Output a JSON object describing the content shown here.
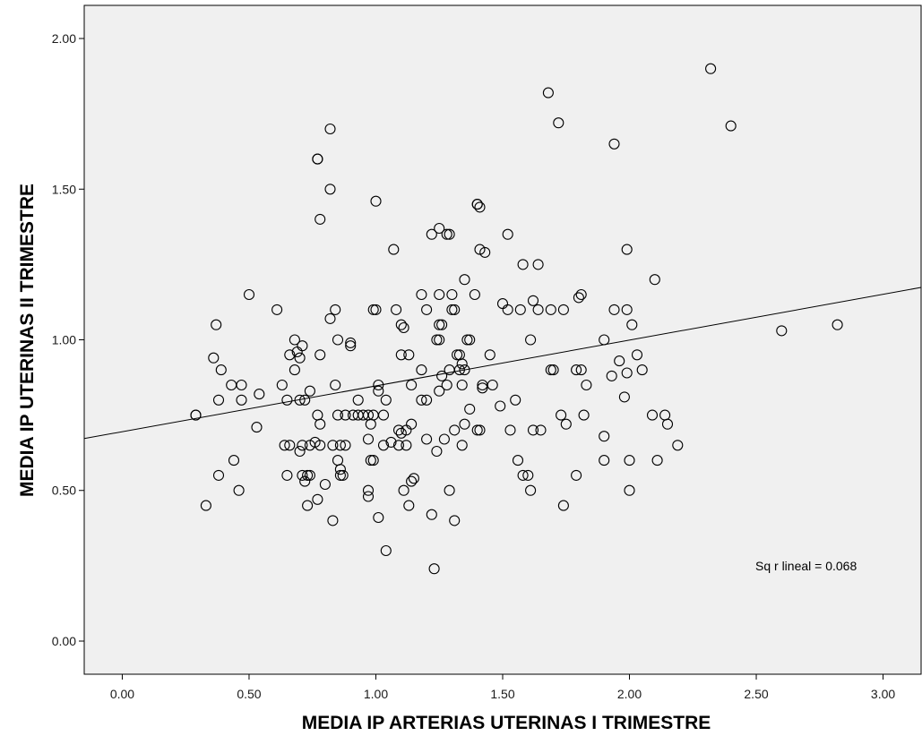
{
  "chart_data": {
    "type": "scatter",
    "title": "",
    "xlabel": "MEDIA IP ARTERIAS UTERINAS I TRIMESTRE",
    "ylabel": "MEDIA IP UTERINAS II TRIMESTRE",
    "xlim": [
      -0.15,
      3.15
    ],
    "ylim": [
      -0.11,
      2.11
    ],
    "xticks": [
      "0.00",
      "0.50",
      "1.00",
      "1.50",
      "2.00",
      "2.50",
      "3.00"
    ],
    "yticks": [
      "0.00",
      "0.50",
      "1.00",
      "1.50",
      "2.00"
    ],
    "grid": false,
    "background_color": "#f0f0f0",
    "marker": "open-circle",
    "fit_line": {
      "intercept": 0.695,
      "slope": 0.152
    },
    "annotation": "Sq r lineal = 0.068",
    "points": [
      [
        2.32,
        1.9
      ],
      [
        2.4,
        1.71
      ],
      [
        1.68,
        1.82
      ],
      [
        1.72,
        1.72
      ],
      [
        1.94,
        1.65
      ],
      [
        0.82,
        1.7
      ],
      [
        0.77,
        1.6
      ],
      [
        0.77,
        1.6
      ],
      [
        0.82,
        1.5
      ],
      [
        0.78,
        1.4
      ],
      [
        1.0,
        1.46
      ],
      [
        1.4,
        1.45
      ],
      [
        1.41,
        1.44
      ],
      [
        1.4,
        1.45
      ],
      [
        1.25,
        1.37
      ],
      [
        1.22,
        1.35
      ],
      [
        1.29,
        1.35
      ],
      [
        1.28,
        1.35
      ],
      [
        1.52,
        1.35
      ],
      [
        1.07,
        1.3
      ],
      [
        1.41,
        1.3
      ],
      [
        1.43,
        1.29
      ],
      [
        1.99,
        1.3
      ],
      [
        1.58,
        1.25
      ],
      [
        1.64,
        1.25
      ],
      [
        2.1,
        1.2
      ],
      [
        1.35,
        1.2
      ],
      [
        0.5,
        1.15
      ],
      [
        1.18,
        1.15
      ],
      [
        1.25,
        1.15
      ],
      [
        1.3,
        1.15
      ],
      [
        1.39,
        1.15
      ],
      [
        1.81,
        1.15
      ],
      [
        1.8,
        1.14
      ],
      [
        1.62,
        1.13
      ],
      [
        1.5,
        1.12
      ],
      [
        0.61,
        1.1
      ],
      [
        0.84,
        1.1
      ],
      [
        1.0,
        1.1
      ],
      [
        0.99,
        1.1
      ],
      [
        1.08,
        1.1
      ],
      [
        1.2,
        1.1
      ],
      [
        1.3,
        1.1
      ],
      [
        1.31,
        1.1
      ],
      [
        1.52,
        1.1
      ],
      [
        1.57,
        1.1
      ],
      [
        1.64,
        1.1
      ],
      [
        1.69,
        1.1
      ],
      [
        1.74,
        1.1
      ],
      [
        1.94,
        1.1
      ],
      [
        1.99,
        1.1
      ],
      [
        0.82,
        1.07
      ],
      [
        0.37,
        1.05
      ],
      [
        1.1,
        1.05
      ],
      [
        1.26,
        1.05
      ],
      [
        1.25,
        1.05
      ],
      [
        1.11,
        1.04
      ],
      [
        2.01,
        1.05
      ],
      [
        2.6,
        1.03
      ],
      [
        2.82,
        1.05
      ],
      [
        0.68,
        1.0
      ],
      [
        0.85,
        1.0
      ],
      [
        1.24,
        1.0
      ],
      [
        1.25,
        1.0
      ],
      [
        1.37,
        1.0
      ],
      [
        1.36,
        1.0
      ],
      [
        1.61,
        1.0
      ],
      [
        1.9,
        1.0
      ],
      [
        0.71,
        0.98
      ],
      [
        0.9,
        0.99
      ],
      [
        0.9,
        0.98
      ],
      [
        0.36,
        0.94
      ],
      [
        0.66,
        0.95
      ],
      [
        0.7,
        0.94
      ],
      [
        0.69,
        0.96
      ],
      [
        0.78,
        0.95
      ],
      [
        1.1,
        0.95
      ],
      [
        1.13,
        0.95
      ],
      [
        1.33,
        0.95
      ],
      [
        1.32,
        0.95
      ],
      [
        1.45,
        0.95
      ],
      [
        1.96,
        0.93
      ],
      [
        2.03,
        0.95
      ],
      [
        0.39,
        0.9
      ],
      [
        0.68,
        0.9
      ],
      [
        1.18,
        0.9
      ],
      [
        1.29,
        0.9
      ],
      [
        1.33,
        0.9
      ],
      [
        1.35,
        0.9
      ],
      [
        1.69,
        0.9
      ],
      [
        1.7,
        0.9
      ],
      [
        1.79,
        0.9
      ],
      [
        1.81,
        0.9
      ],
      [
        1.99,
        0.89
      ],
      [
        2.05,
        0.9
      ],
      [
        1.93,
        0.88
      ],
      [
        1.26,
        0.88
      ],
      [
        1.34,
        0.92
      ],
      [
        0.43,
        0.85
      ],
      [
        0.47,
        0.85
      ],
      [
        0.63,
        0.85
      ],
      [
        0.84,
        0.85
      ],
      [
        1.01,
        0.85
      ],
      [
        1.14,
        0.85
      ],
      [
        1.28,
        0.85
      ],
      [
        1.34,
        0.85
      ],
      [
        1.42,
        0.84
      ],
      [
        1.46,
        0.85
      ],
      [
        1.83,
        0.85
      ],
      [
        1.42,
        0.85
      ],
      [
        0.38,
        0.8
      ],
      [
        0.47,
        0.8
      ],
      [
        0.54,
        0.82
      ],
      [
        0.65,
        0.8
      ],
      [
        0.7,
        0.8
      ],
      [
        0.72,
        0.8
      ],
      [
        0.74,
        0.83
      ],
      [
        0.93,
        0.8
      ],
      [
        1.04,
        0.8
      ],
      [
        1.01,
        0.83
      ],
      [
        1.18,
        0.8
      ],
      [
        1.2,
        0.8
      ],
      [
        1.25,
        0.83
      ],
      [
        1.55,
        0.8
      ],
      [
        1.98,
        0.81
      ],
      [
        1.37,
        0.77
      ],
      [
        1.49,
        0.78
      ],
      [
        0.29,
        0.75
      ],
      [
        0.29,
        0.75
      ],
      [
        0.77,
        0.75
      ],
      [
        0.85,
        0.75
      ],
      [
        0.88,
        0.75
      ],
      [
        0.91,
        0.75
      ],
      [
        0.93,
        0.75
      ],
      [
        0.95,
        0.75
      ],
      [
        0.97,
        0.75
      ],
      [
        0.99,
        0.75
      ],
      [
        1.03,
        0.75
      ],
      [
        1.73,
        0.75
      ],
      [
        1.82,
        0.75
      ],
      [
        2.09,
        0.75
      ],
      [
        2.14,
        0.75
      ],
      [
        0.53,
        0.71
      ],
      [
        0.78,
        0.72
      ],
      [
        0.98,
        0.72
      ],
      [
        1.09,
        0.7
      ],
      [
        1.1,
        0.69
      ],
      [
        1.12,
        0.7
      ],
      [
        1.14,
        0.72
      ],
      [
        1.31,
        0.7
      ],
      [
        1.35,
        0.72
      ],
      [
        1.4,
        0.7
      ],
      [
        1.41,
        0.7
      ],
      [
        1.53,
        0.7
      ],
      [
        1.62,
        0.7
      ],
      [
        1.65,
        0.7
      ],
      [
        1.75,
        0.72
      ],
      [
        2.15,
        0.72
      ],
      [
        0.64,
        0.65
      ],
      [
        0.66,
        0.65
      ],
      [
        0.71,
        0.65
      ],
      [
        0.74,
        0.65
      ],
      [
        0.76,
        0.66
      ],
      [
        0.78,
        0.65
      ],
      [
        0.83,
        0.65
      ],
      [
        0.86,
        0.65
      ],
      [
        0.88,
        0.65
      ],
      [
        0.97,
        0.67
      ],
      [
        1.03,
        0.65
      ],
      [
        1.06,
        0.66
      ],
      [
        1.09,
        0.65
      ],
      [
        1.12,
        0.65
      ],
      [
        1.2,
        0.67
      ],
      [
        1.27,
        0.67
      ],
      [
        1.34,
        0.65
      ],
      [
        1.9,
        0.68
      ],
      [
        2.19,
        0.65
      ],
      [
        0.44,
        0.6
      ],
      [
        0.7,
        0.63
      ],
      [
        0.85,
        0.6
      ],
      [
        0.98,
        0.6
      ],
      [
        0.99,
        0.6
      ],
      [
        1.24,
        0.63
      ],
      [
        1.56,
        0.6
      ],
      [
        1.9,
        0.6
      ],
      [
        2.0,
        0.6
      ],
      [
        2.11,
        0.6
      ],
      [
        0.38,
        0.55
      ],
      [
        0.65,
        0.55
      ],
      [
        0.71,
        0.55
      ],
      [
        0.73,
        0.55
      ],
      [
        0.74,
        0.55
      ],
      [
        0.86,
        0.57
      ],
      [
        0.86,
        0.55
      ],
      [
        0.87,
        0.55
      ],
      [
        1.14,
        0.53
      ],
      [
        1.15,
        0.54
      ],
      [
        1.58,
        0.55
      ],
      [
        1.6,
        0.55
      ],
      [
        1.79,
        0.55
      ],
      [
        0.46,
        0.5
      ],
      [
        0.72,
        0.53
      ],
      [
        0.8,
        0.52
      ],
      [
        0.97,
        0.5
      ],
      [
        1.11,
        0.5
      ],
      [
        1.29,
        0.5
      ],
      [
        1.61,
        0.5
      ],
      [
        2.0,
        0.5
      ],
      [
        0.33,
        0.45
      ],
      [
        0.73,
        0.45
      ],
      [
        0.77,
        0.47
      ],
      [
        0.97,
        0.48
      ],
      [
        1.13,
        0.45
      ],
      [
        1.74,
        0.45
      ],
      [
        0.83,
        0.4
      ],
      [
        1.01,
        0.41
      ],
      [
        1.22,
        0.42
      ],
      [
        1.31,
        0.4
      ],
      [
        1.04,
        0.3
      ],
      [
        1.23,
        0.24
      ]
    ]
  }
}
